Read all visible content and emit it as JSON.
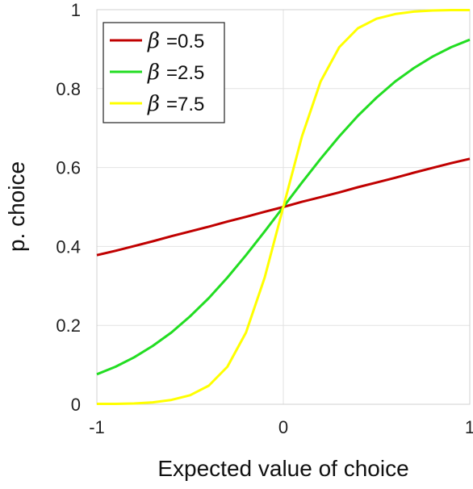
{
  "chart_data": {
    "type": "line",
    "xlabel": "Expected value of choice",
    "ylabel": "p. choice",
    "xlim": [
      -1,
      1
    ],
    "ylim": [
      0,
      1
    ],
    "x_ticks": [
      "-1",
      "0",
      "1"
    ],
    "y_ticks": [
      "0",
      "0.2",
      "0.4",
      "0.6",
      "0.8",
      "1"
    ],
    "grid": true,
    "legend_position": "top-left",
    "x": [
      -1,
      -0.9,
      -0.8,
      -0.7,
      -0.6,
      -0.5,
      -0.4,
      -0.3,
      -0.2,
      -0.1,
      0,
      0.1,
      0.2,
      0.3,
      0.4,
      0.5,
      0.6,
      0.7,
      0.8,
      0.9,
      1
    ],
    "series": [
      {
        "name": "=0.5",
        "symbol": "β",
        "color": "#c00000",
        "values": [
          0.378,
          0.389,
          0.401,
          0.413,
          0.426,
          0.438,
          0.45,
          0.463,
          0.475,
          0.488,
          0.5,
          0.513,
          0.525,
          0.537,
          0.55,
          0.562,
          0.574,
          0.587,
          0.599,
          0.611,
          0.622
        ]
      },
      {
        "name": "=2.5",
        "symbol": "β",
        "color": "#22dd22",
        "values": [
          0.076,
          0.095,
          0.119,
          0.148,
          0.182,
          0.223,
          0.269,
          0.321,
          0.378,
          0.438,
          0.5,
          0.562,
          0.622,
          0.679,
          0.731,
          0.777,
          0.818,
          0.852,
          0.881,
          0.905,
          0.924
        ]
      },
      {
        "name": "=7.5",
        "symbol": "β",
        "color": "#ffff00",
        "values": [
          0.001,
          0.001,
          0.002,
          0.005,
          0.011,
          0.023,
          0.047,
          0.095,
          0.182,
          0.321,
          0.5,
          0.679,
          0.818,
          0.905,
          0.953,
          0.977,
          0.989,
          0.995,
          0.998,
          0.999,
          0.999
        ]
      }
    ]
  }
}
